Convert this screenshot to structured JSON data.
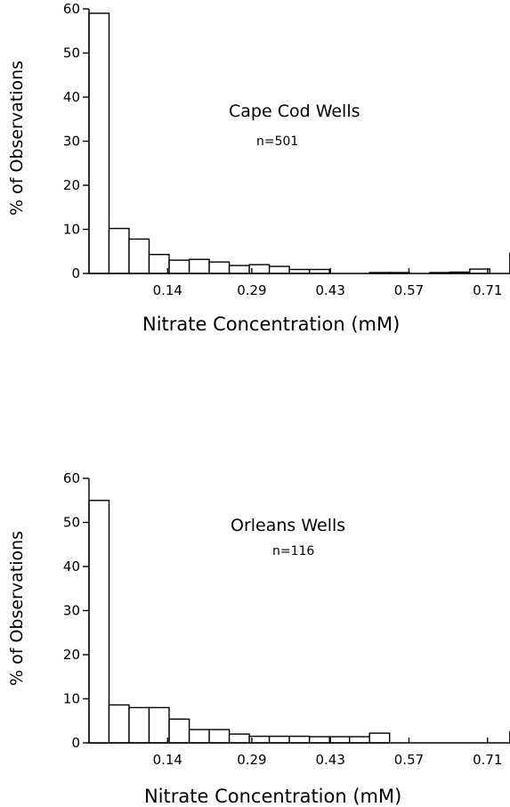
{
  "chart_data": [
    {
      "type": "bar",
      "histogram": true,
      "title": "",
      "annotation": "Cape Cod Wells",
      "annotation_n": "n=501",
      "xlabel": "Nitrate Concentration (mM)",
      "ylabel": "% of Observations",
      "ylim": [
        0,
        60
      ],
      "yticks": [
        0,
        10,
        20,
        30,
        40,
        50,
        60
      ],
      "xticks": [
        "0.14",
        "0.29",
        "0.43",
        "0.57",
        "0.71"
      ],
      "xtick_values": [
        0.14,
        0.29,
        0.43,
        0.57,
        0.71
      ],
      "xlim": [
        0,
        0.75
      ],
      "bin_width": 0.0357,
      "values": [
        59,
        10.2,
        7.8,
        4.3,
        3.0,
        3.2,
        2.6,
        1.8,
        2.0,
        1.6,
        0.9,
        0.9,
        0,
        0,
        0.2,
        0.2,
        0,
        0.2,
        0.3,
        1.0,
        0,
        4.6
      ]
    },
    {
      "type": "bar",
      "histogram": true,
      "title": "",
      "annotation": "Orleans Wells",
      "annotation_n": "n=116",
      "xlabel": "Nitrate Concentration (mM)",
      "ylabel": "% of Observations",
      "ylim": [
        0,
        60
      ],
      "yticks": [
        0,
        10,
        20,
        30,
        40,
        50,
        60
      ],
      "xticks": [
        "0.14",
        "0.29",
        "0.43",
        "0.57",
        "0.71"
      ],
      "xtick_values": [
        0.14,
        0.29,
        0.43,
        0.57,
        0.71
      ],
      "xlim": [
        0,
        0.75
      ],
      "bin_width": 0.0357,
      "values": [
        55,
        8.6,
        8.0,
        8.0,
        5.4,
        3.0,
        3.0,
        2.0,
        1.5,
        1.5,
        1.5,
        1.4,
        1.4,
        1.4,
        2.2,
        0,
        0,
        0,
        0,
        0,
        0,
        2.5
      ]
    }
  ]
}
